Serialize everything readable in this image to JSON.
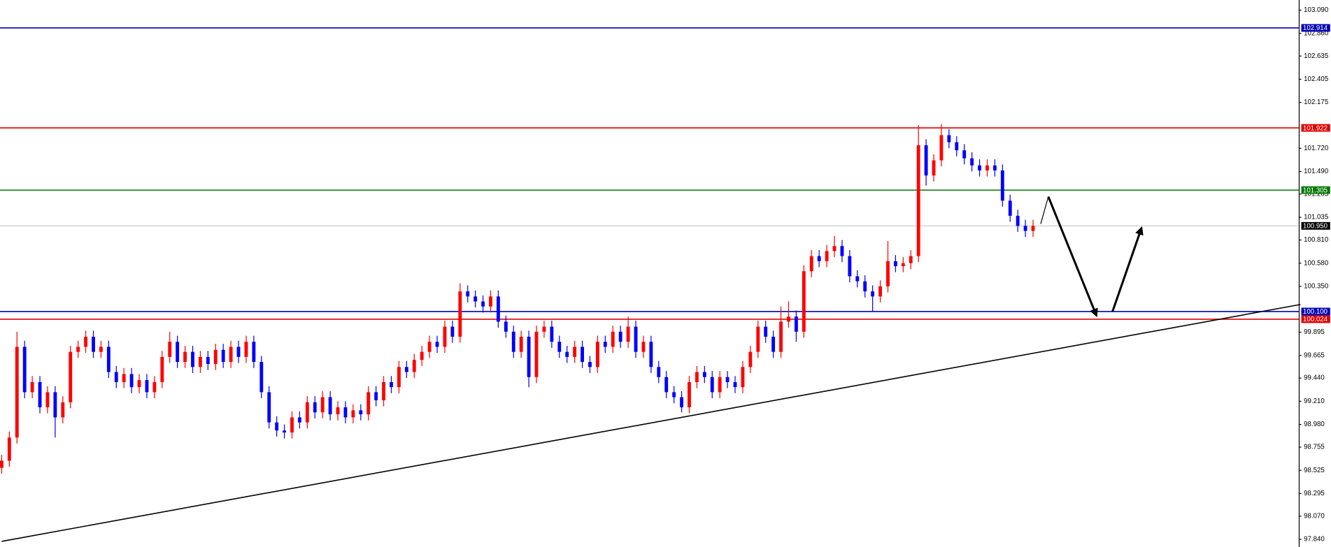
{
  "chart_data": {
    "type": "candlestick",
    "up_color": "#ff0000",
    "down_color": "#0000ff",
    "ylim": [
      97.764,
      103.191
    ],
    "yticks": [
      {
        "value": 103.09,
        "label": "103.090"
      },
      {
        "value": 102.86,
        "label": "102.860"
      },
      102.635,
      102.405,
      102.175,
      {
        "value": 101.72,
        "label": "101.720"
      },
      {
        "value": 101.49,
        "label": "101.490"
      },
      101.265,
      101.035,
      {
        "value": 100.81,
        "label": "100.810"
      },
      {
        "value": 100.58,
        "label": "100.580"
      },
      {
        "value": 100.35,
        "label": "100.350"
      },
      99.895,
      99.665,
      {
        "value": 99.44,
        "label": "99.440"
      },
      {
        "value": 99.21,
        "label": "99.210"
      },
      {
        "value": 98.98,
        "label": "98.980"
      },
      98.755,
      98.525,
      98.295,
      {
        "value": 98.07,
        "label": "98.070"
      },
      {
        "value": 97.84,
        "label": "97.840"
      }
    ],
    "levels": [
      {
        "value": 102.914,
        "color": "#0000b4"
      },
      {
        "value": 101.922,
        "color": "#e00000"
      },
      {
        "value": 101.305,
        "color": "#007800"
      },
      {
        "value": 100.95,
        "label": "100.950",
        "color": "#c0c0c0"
      },
      {
        "value": 100.1,
        "label": "100.100",
        "color": "#0000b4"
      },
      {
        "value": 100.024,
        "color": "#e00000"
      }
    ],
    "open": [
      98.55,
      98.62,
      98.85,
      99.75,
      99.3,
      99.4,
      99.15,
      99.3,
      99.05,
      99.2,
      99.7,
      99.75,
      99.85,
      99.7,
      99.75,
      99.5,
      99.4,
      99.48,
      99.35,
      99.42,
      99.3,
      99.4,
      99.65,
      99.8,
      99.6,
      99.7,
      99.55,
      99.65,
      99.58,
      99.72,
      99.6,
      99.75,
      99.65,
      99.8,
      99.6,
      99.3,
      99.0,
      98.92,
      98.9,
      99.05,
      99.0,
      99.2,
      99.1,
      99.25,
      99.08,
      99.15,
      99.05,
      99.12,
      99.08,
      99.3,
      99.22,
      99.4,
      99.35,
      99.55,
      99.5,
      99.62,
      99.7,
      99.8,
      99.75,
      99.95,
      99.85,
      100.3,
      100.25,
      100.2,
      100.15,
      100.25,
      100.0,
      99.9,
      99.7,
      99.85,
      99.45,
      99.9,
      99.95,
      99.8,
      99.7,
      99.65,
      99.75,
      99.6,
      99.55,
      99.8,
      99.75,
      99.9,
      99.8,
      99.95,
      99.7,
      99.8,
      99.55,
      99.45,
      99.3,
      99.25,
      99.15,
      99.4,
      99.5,
      99.45,
      99.3,
      99.45,
      99.4,
      99.35,
      99.55,
      99.7,
      99.95,
      99.85,
      99.7,
      100.0,
      100.05,
      99.9,
      100.5,
      100.65,
      100.6,
      100.7,
      100.75,
      100.65,
      100.45,
      100.4,
      100.3,
      100.25,
      100.35,
      100.6,
      100.55,
      100.58,
      100.65,
      101.75,
      101.45,
      101.6,
      101.85,
      101.78,
      101.7,
      101.62,
      101.55,
      101.5,
      101.55,
      101.5,
      101.2,
      101.05,
      100.95,
      100.9
    ],
    "high": [
      98.68,
      98.91,
      99.9,
      99.81,
      99.46,
      99.46,
      99.36,
      99.36,
      99.26,
      99.76,
      99.81,
      99.91,
      99.91,
      99.81,
      99.81,
      99.56,
      99.54,
      99.54,
      99.48,
      99.48,
      99.46,
      99.71,
      99.9,
      99.86,
      99.76,
      99.76,
      99.71,
      99.71,
      99.78,
      99.78,
      99.81,
      99.81,
      99.86,
      99.86,
      99.66,
      99.36,
      99.06,
      98.98,
      99.11,
      99.11,
      99.26,
      99.26,
      99.31,
      99.31,
      99.21,
      99.21,
      99.18,
      99.18,
      99.36,
      99.36,
      99.46,
      99.46,
      99.61,
      99.61,
      99.68,
      99.76,
      99.86,
      99.86,
      100.01,
      100.01,
      100.38,
      100.36,
      100.31,
      100.26,
      100.31,
      100.31,
      100.06,
      99.96,
      99.91,
      99.91,
      99.96,
      100.01,
      100.01,
      99.86,
      99.76,
      99.81,
      99.81,
      99.66,
      99.86,
      99.86,
      99.96,
      99.96,
      100.05,
      100.01,
      99.86,
      99.86,
      99.61,
      99.51,
      99.36,
      99.31,
      99.46,
      99.56,
      99.56,
      99.51,
      99.51,
      99.51,
      99.46,
      99.61,
      99.76,
      100.01,
      100.01,
      99.91,
      100.15,
      100.2,
      100.11,
      100.56,
      100.71,
      100.71,
      100.76,
      100.85,
      100.81,
      100.71,
      100.51,
      100.46,
      100.36,
      100.41,
      100.8,
      100.66,
      100.64,
      100.71,
      101.95,
      101.81,
      101.66,
      101.96,
      101.91,
      101.84,
      101.76,
      101.68,
      101.61,
      101.61,
      101.61,
      101.56,
      101.26,
      101.11,
      101.01,
      101.01
    ],
    "low": [
      98.49,
      98.56,
      98.79,
      99.24,
      99.24,
      99.09,
      99.09,
      98.85,
      98.99,
      99.14,
      99.64,
      99.69,
      99.64,
      99.64,
      99.44,
      99.34,
      99.34,
      99.29,
      99.29,
      99.24,
      99.24,
      99.34,
      99.59,
      99.54,
      99.54,
      99.49,
      99.49,
      99.52,
      99.52,
      99.54,
      99.54,
      99.59,
      99.59,
      99.54,
      99.24,
      98.94,
      98.86,
      98.84,
      98.84,
      98.94,
      98.94,
      99.04,
      99.04,
      99.02,
      99.02,
      98.99,
      98.99,
      99.02,
      99.02,
      99.16,
      99.16,
      99.29,
      99.29,
      99.44,
      99.44,
      99.56,
      99.64,
      99.69,
      99.69,
      99.79,
      99.79,
      100.19,
      100.14,
      100.09,
      100.09,
      99.94,
      99.84,
      99.64,
      99.64,
      99.35,
      99.39,
      99.84,
      99.74,
      99.64,
      99.59,
      99.59,
      99.54,
      99.49,
      99.49,
      99.69,
      99.69,
      99.74,
      99.74,
      99.64,
      99.64,
      99.49,
      99.39,
      99.24,
      99.19,
      99.1,
      99.09,
      99.34,
      99.39,
      99.24,
      99.24,
      99.34,
      99.29,
      99.29,
      99.49,
      99.64,
      99.79,
      99.64,
      99.64,
      99.94,
      99.8,
      99.84,
      100.44,
      100.54,
      100.54,
      100.64,
      100.59,
      100.39,
      100.34,
      100.24,
      100.1,
      100.19,
      100.29,
      100.49,
      100.49,
      100.52,
      100.59,
      101.35,
      101.39,
      101.54,
      101.72,
      101.64,
      101.56,
      101.49,
      101.44,
      101.44,
      101.44,
      101.14,
      100.99,
      100.89,
      100.84,
      100.84
    ],
    "close": [
      98.62,
      98.85,
      99.75,
      99.3,
      99.4,
      99.15,
      99.3,
      99.05,
      99.2,
      99.7,
      99.75,
      99.85,
      99.7,
      99.75,
      99.5,
      99.4,
      99.48,
      99.35,
      99.42,
      99.3,
      99.4,
      99.65,
      99.8,
      99.6,
      99.7,
      99.55,
      99.65,
      99.58,
      99.72,
      99.6,
      99.75,
      99.65,
      99.8,
      99.6,
      99.3,
      99.0,
      98.92,
      98.9,
      99.05,
      99.0,
      99.2,
      99.1,
      99.25,
      99.08,
      99.15,
      99.05,
      99.12,
      99.08,
      99.3,
      99.22,
      99.4,
      99.35,
      99.55,
      99.5,
      99.62,
      99.7,
      99.8,
      99.75,
      99.95,
      99.85,
      100.3,
      100.25,
      100.2,
      100.15,
      100.25,
      100.0,
      99.9,
      99.7,
      99.85,
      99.45,
      99.9,
      99.95,
      99.8,
      99.7,
      99.65,
      99.75,
      99.6,
      99.55,
      99.8,
      99.75,
      99.9,
      99.8,
      99.95,
      99.7,
      99.8,
      99.55,
      99.45,
      99.3,
      99.25,
      99.15,
      99.4,
      99.5,
      99.45,
      99.3,
      99.45,
      99.4,
      99.35,
      99.55,
      99.7,
      99.95,
      99.85,
      99.7,
      100.0,
      100.05,
      99.9,
      100.5,
      100.65,
      100.6,
      100.7,
      100.75,
      100.65,
      100.45,
      100.4,
      100.3,
      100.25,
      100.35,
      100.6,
      100.55,
      100.58,
      100.65,
      101.75,
      101.45,
      101.6,
      101.85,
      101.78,
      101.7,
      101.62,
      101.55,
      101.5,
      101.55,
      101.5,
      101.2,
      101.05,
      100.95,
      100.9,
      100.95
    ],
    "trendline": {
      "start": {
        "bar": 0,
        "price": 97.82
      },
      "end": {
        "bar": 170,
        "price": 100.17
      },
      "color": "#000000"
    },
    "forecast": [
      {
        "bar": 136,
        "price": 100.97
      },
      {
        "bar": 137,
        "price": 101.24
      },
      {
        "bar": 143.3,
        "price": 100.06
      },
      {
        "bar": 145.4,
        "price": 100.1
      },
      {
        "bar": 149.2,
        "price": 100.93
      }
    ]
  }
}
